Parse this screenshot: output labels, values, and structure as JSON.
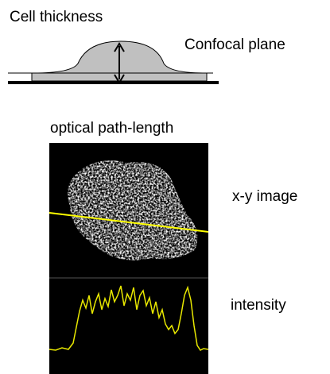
{
  "labels": {
    "cell_thickness": "Cell thickness",
    "confocal_plane": "Confocal plane",
    "optical_path_length": "optical path-length",
    "xy_image": "x-y image",
    "intensity": "intensity"
  }
}
